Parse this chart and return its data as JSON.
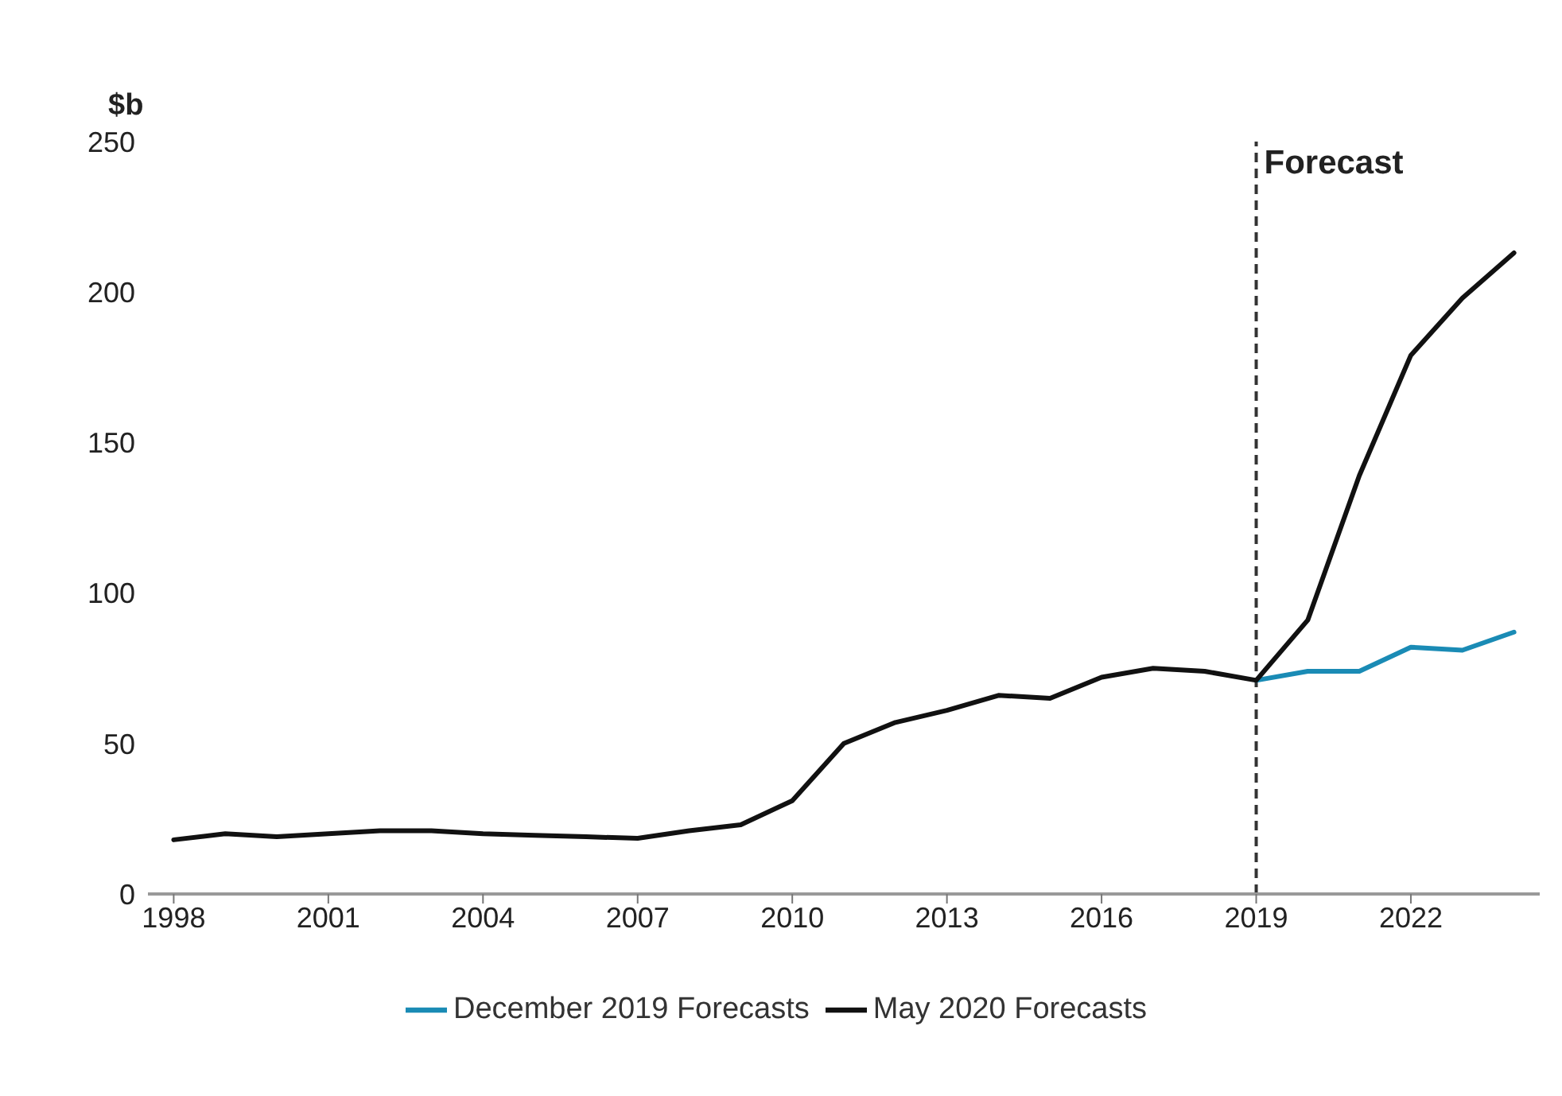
{
  "chart_data": {
    "type": "line",
    "ylabel": "$b",
    "x": [
      1998,
      1999,
      2000,
      2001,
      2002,
      2003,
      2004,
      2005,
      2006,
      2007,
      2008,
      2009,
      2010,
      2011,
      2012,
      2013,
      2014,
      2015,
      2016,
      2017,
      2018,
      2019,
      2020,
      2021,
      2022,
      2023,
      2024
    ],
    "series": [
      {
        "name": "December 2019 Forecasts",
        "color": "#1a8bb5",
        "values": [
          null,
          null,
          null,
          null,
          null,
          null,
          null,
          null,
          null,
          null,
          null,
          null,
          null,
          null,
          null,
          null,
          null,
          null,
          null,
          null,
          null,
          71,
          74,
          74,
          82,
          81,
          87
        ]
      },
      {
        "name": "May 2020 Forecasts",
        "color": "#111111",
        "values": [
          18,
          20,
          19,
          20,
          21,
          21,
          20,
          19.5,
          19,
          18.5,
          21,
          23,
          31,
          50,
          57,
          61,
          66,
          65,
          72,
          75,
          74,
          71,
          91,
          139,
          179,
          198,
          213
        ]
      }
    ],
    "xlim": [
      1997.5,
      2024.5
    ],
    "xticks": [
      1998,
      2001,
      2004,
      2007,
      2010,
      2013,
      2016,
      2019,
      2022
    ],
    "ylim": [
      0,
      250
    ],
    "yticks": [
      0,
      50,
      100,
      150,
      200,
      250
    ],
    "ref_lines": [
      {
        "axis": "x",
        "value": 2019,
        "label": "Forecast",
        "line_style": "dashed",
        "color": "#333333"
      }
    ],
    "grid": false,
    "legend": "bottom",
    "marker": "none",
    "line_style": "solid"
  }
}
